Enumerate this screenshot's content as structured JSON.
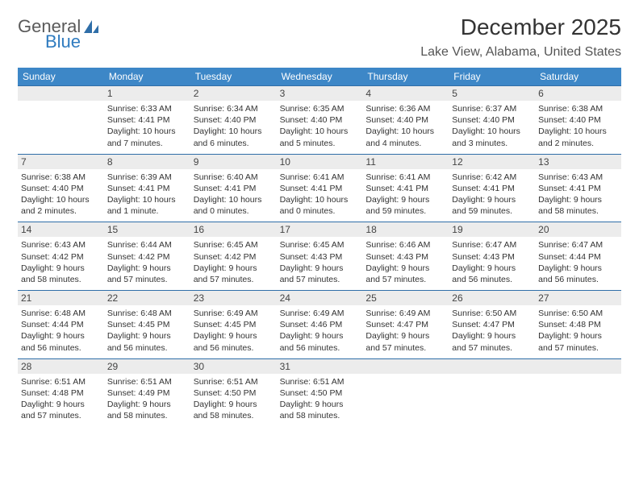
{
  "brand": {
    "line1": "General",
    "line2": "Blue"
  },
  "title": "December 2025",
  "location": "Lake View, Alabama, United States",
  "colors": {
    "header_bg": "#3d87c7",
    "header_text": "#ffffff",
    "daynum_bg": "#ececec",
    "day_border": "#2f6ea8",
    "body_text": "#333333",
    "brand_gray": "#5a5a5a",
    "brand_blue": "#2f7bbf"
  },
  "daysOfWeek": [
    "Sunday",
    "Monday",
    "Tuesday",
    "Wednesday",
    "Thursday",
    "Friday",
    "Saturday"
  ],
  "startOffset": 1,
  "days": [
    {
      "n": 1,
      "sunrise": "6:33 AM",
      "sunset": "4:41 PM",
      "daylight": "10 hours and 7 minutes."
    },
    {
      "n": 2,
      "sunrise": "6:34 AM",
      "sunset": "4:40 PM",
      "daylight": "10 hours and 6 minutes."
    },
    {
      "n": 3,
      "sunrise": "6:35 AM",
      "sunset": "4:40 PM",
      "daylight": "10 hours and 5 minutes."
    },
    {
      "n": 4,
      "sunrise": "6:36 AM",
      "sunset": "4:40 PM",
      "daylight": "10 hours and 4 minutes."
    },
    {
      "n": 5,
      "sunrise": "6:37 AM",
      "sunset": "4:40 PM",
      "daylight": "10 hours and 3 minutes."
    },
    {
      "n": 6,
      "sunrise": "6:38 AM",
      "sunset": "4:40 PM",
      "daylight": "10 hours and 2 minutes."
    },
    {
      "n": 7,
      "sunrise": "6:38 AM",
      "sunset": "4:40 PM",
      "daylight": "10 hours and 2 minutes."
    },
    {
      "n": 8,
      "sunrise": "6:39 AM",
      "sunset": "4:41 PM",
      "daylight": "10 hours and 1 minute."
    },
    {
      "n": 9,
      "sunrise": "6:40 AM",
      "sunset": "4:41 PM",
      "daylight": "10 hours and 0 minutes."
    },
    {
      "n": 10,
      "sunrise": "6:41 AM",
      "sunset": "4:41 PM",
      "daylight": "10 hours and 0 minutes."
    },
    {
      "n": 11,
      "sunrise": "6:41 AM",
      "sunset": "4:41 PM",
      "daylight": "9 hours and 59 minutes."
    },
    {
      "n": 12,
      "sunrise": "6:42 AM",
      "sunset": "4:41 PM",
      "daylight": "9 hours and 59 minutes."
    },
    {
      "n": 13,
      "sunrise": "6:43 AM",
      "sunset": "4:41 PM",
      "daylight": "9 hours and 58 minutes."
    },
    {
      "n": 14,
      "sunrise": "6:43 AM",
      "sunset": "4:42 PM",
      "daylight": "9 hours and 58 minutes."
    },
    {
      "n": 15,
      "sunrise": "6:44 AM",
      "sunset": "4:42 PM",
      "daylight": "9 hours and 57 minutes."
    },
    {
      "n": 16,
      "sunrise": "6:45 AM",
      "sunset": "4:42 PM",
      "daylight": "9 hours and 57 minutes."
    },
    {
      "n": 17,
      "sunrise": "6:45 AM",
      "sunset": "4:43 PM",
      "daylight": "9 hours and 57 minutes."
    },
    {
      "n": 18,
      "sunrise": "6:46 AM",
      "sunset": "4:43 PM",
      "daylight": "9 hours and 57 minutes."
    },
    {
      "n": 19,
      "sunrise": "6:47 AM",
      "sunset": "4:43 PM",
      "daylight": "9 hours and 56 minutes."
    },
    {
      "n": 20,
      "sunrise": "6:47 AM",
      "sunset": "4:44 PM",
      "daylight": "9 hours and 56 minutes."
    },
    {
      "n": 21,
      "sunrise": "6:48 AM",
      "sunset": "4:44 PM",
      "daylight": "9 hours and 56 minutes."
    },
    {
      "n": 22,
      "sunrise": "6:48 AM",
      "sunset": "4:45 PM",
      "daylight": "9 hours and 56 minutes."
    },
    {
      "n": 23,
      "sunrise": "6:49 AM",
      "sunset": "4:45 PM",
      "daylight": "9 hours and 56 minutes."
    },
    {
      "n": 24,
      "sunrise": "6:49 AM",
      "sunset": "4:46 PM",
      "daylight": "9 hours and 56 minutes."
    },
    {
      "n": 25,
      "sunrise": "6:49 AM",
      "sunset": "4:47 PM",
      "daylight": "9 hours and 57 minutes."
    },
    {
      "n": 26,
      "sunrise": "6:50 AM",
      "sunset": "4:47 PM",
      "daylight": "9 hours and 57 minutes."
    },
    {
      "n": 27,
      "sunrise": "6:50 AM",
      "sunset": "4:48 PM",
      "daylight": "9 hours and 57 minutes."
    },
    {
      "n": 28,
      "sunrise": "6:51 AM",
      "sunset": "4:48 PM",
      "daylight": "9 hours and 57 minutes."
    },
    {
      "n": 29,
      "sunrise": "6:51 AM",
      "sunset": "4:49 PM",
      "daylight": "9 hours and 58 minutes."
    },
    {
      "n": 30,
      "sunrise": "6:51 AM",
      "sunset": "4:50 PM",
      "daylight": "9 hours and 58 minutes."
    },
    {
      "n": 31,
      "sunrise": "6:51 AM",
      "sunset": "4:50 PM",
      "daylight": "9 hours and 58 minutes."
    }
  ],
  "labels": {
    "sunrise": "Sunrise:",
    "sunset": "Sunset:",
    "daylight": "Daylight:"
  }
}
